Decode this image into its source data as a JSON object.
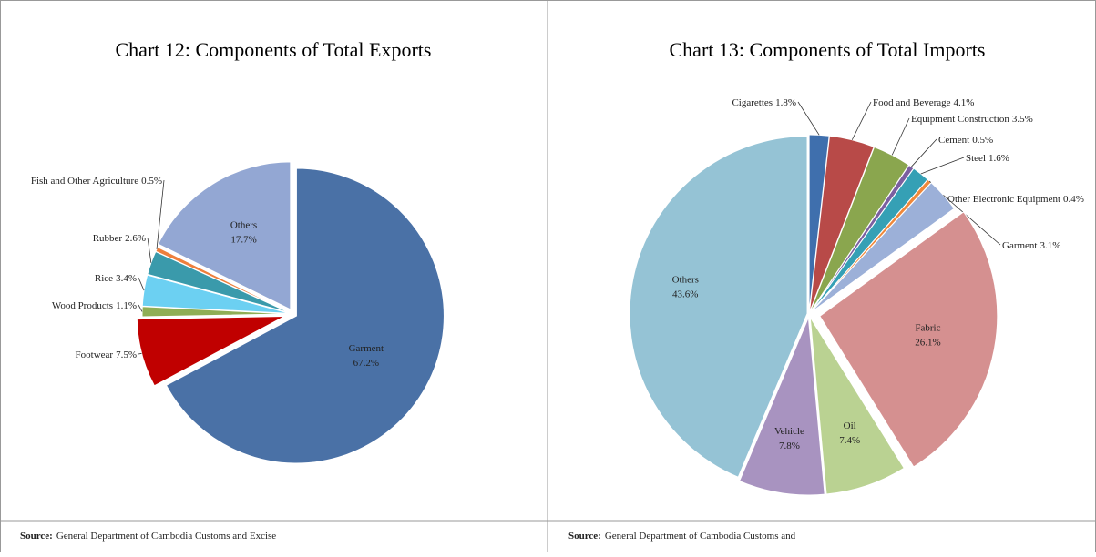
{
  "chart_data": [
    {
      "type": "pie",
      "title": "Chart 12: Components of Total Exports",
      "categories": [
        "Garment",
        "Footwear",
        "Wood Products",
        "Rice",
        "Rubber",
        "Fish and Other Agriculture",
        "Others"
      ],
      "values": [
        67.2,
        7.5,
        1.1,
        3.4,
        2.6,
        0.5,
        17.7
      ],
      "value_labels": [
        "67.2%",
        "7.5%",
        "1.1%",
        "3.4%",
        "2.6%",
        "0.5%",
        "17.7%"
      ],
      "colors": [
        "#4a71a6",
        "#c00000",
        "#8fae55",
        "#6cd0f2",
        "#3a9aab",
        "#ee7f3c",
        "#93a7d3"
      ],
      "source_label": "Source:",
      "source": "General Department of Cambodia Customs and Excise"
    },
    {
      "type": "pie",
      "title": "Chart 13: Components of Total Imports",
      "categories": [
        "Cigarettes",
        "Food and Beverage",
        "Equipment Construction",
        "Cement",
        "Steel",
        "Other Electronic Equipment",
        "Garment",
        "Fabric",
        "Oil",
        "Vehicle",
        "Others"
      ],
      "values": [
        1.8,
        4.1,
        3.5,
        0.5,
        1.6,
        0.4,
        3.1,
        26.1,
        7.4,
        7.8,
        43.6
      ],
      "value_labels": [
        "1.8%",
        "4.1%",
        "3.5%",
        "0.5%",
        "1.6%",
        "0.4%",
        "3.1%",
        "26.1%",
        "7.4%",
        "7.8%",
        "43.6%"
      ],
      "colors": [
        "#3f6fad",
        "#b84a48",
        "#8aa64e",
        "#7b5fa0",
        "#35a0b5",
        "#f0883a",
        "#9cb0d8",
        "#d59090",
        "#bad292",
        "#a893c0",
        "#95c3d5"
      ],
      "source_label": "Source:",
      "source": "General Department of Cambodia Customs and"
    }
  ]
}
